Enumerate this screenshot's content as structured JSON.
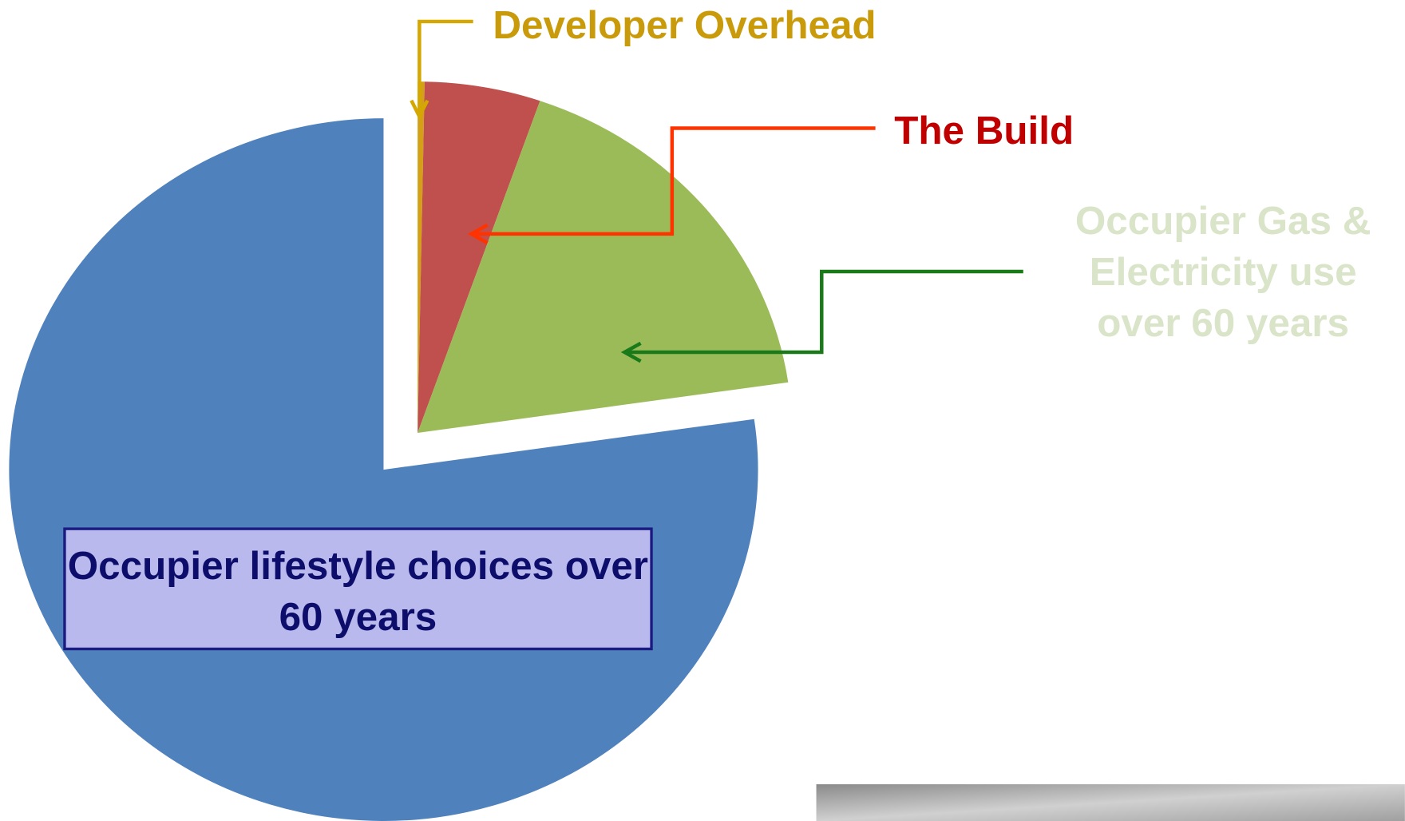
{
  "chart_data": {
    "type": "pie",
    "categories": [
      "Developer Overhead",
      "The Build",
      "Occupier Gas & Electricity use over 60 years",
      "Occupier lifestyle choices over 60 years"
    ],
    "values": [
      0.3,
      5,
      17.4,
      77.3
    ],
    "colors": [
      "#d4a017",
      "#c0504d",
      "#9bbb59",
      "#4f81bd"
    ],
    "label_colors": [
      "#c99a0a",
      "#c00000",
      "#d9e4c8",
      "#0d0d6b"
    ]
  }
}
